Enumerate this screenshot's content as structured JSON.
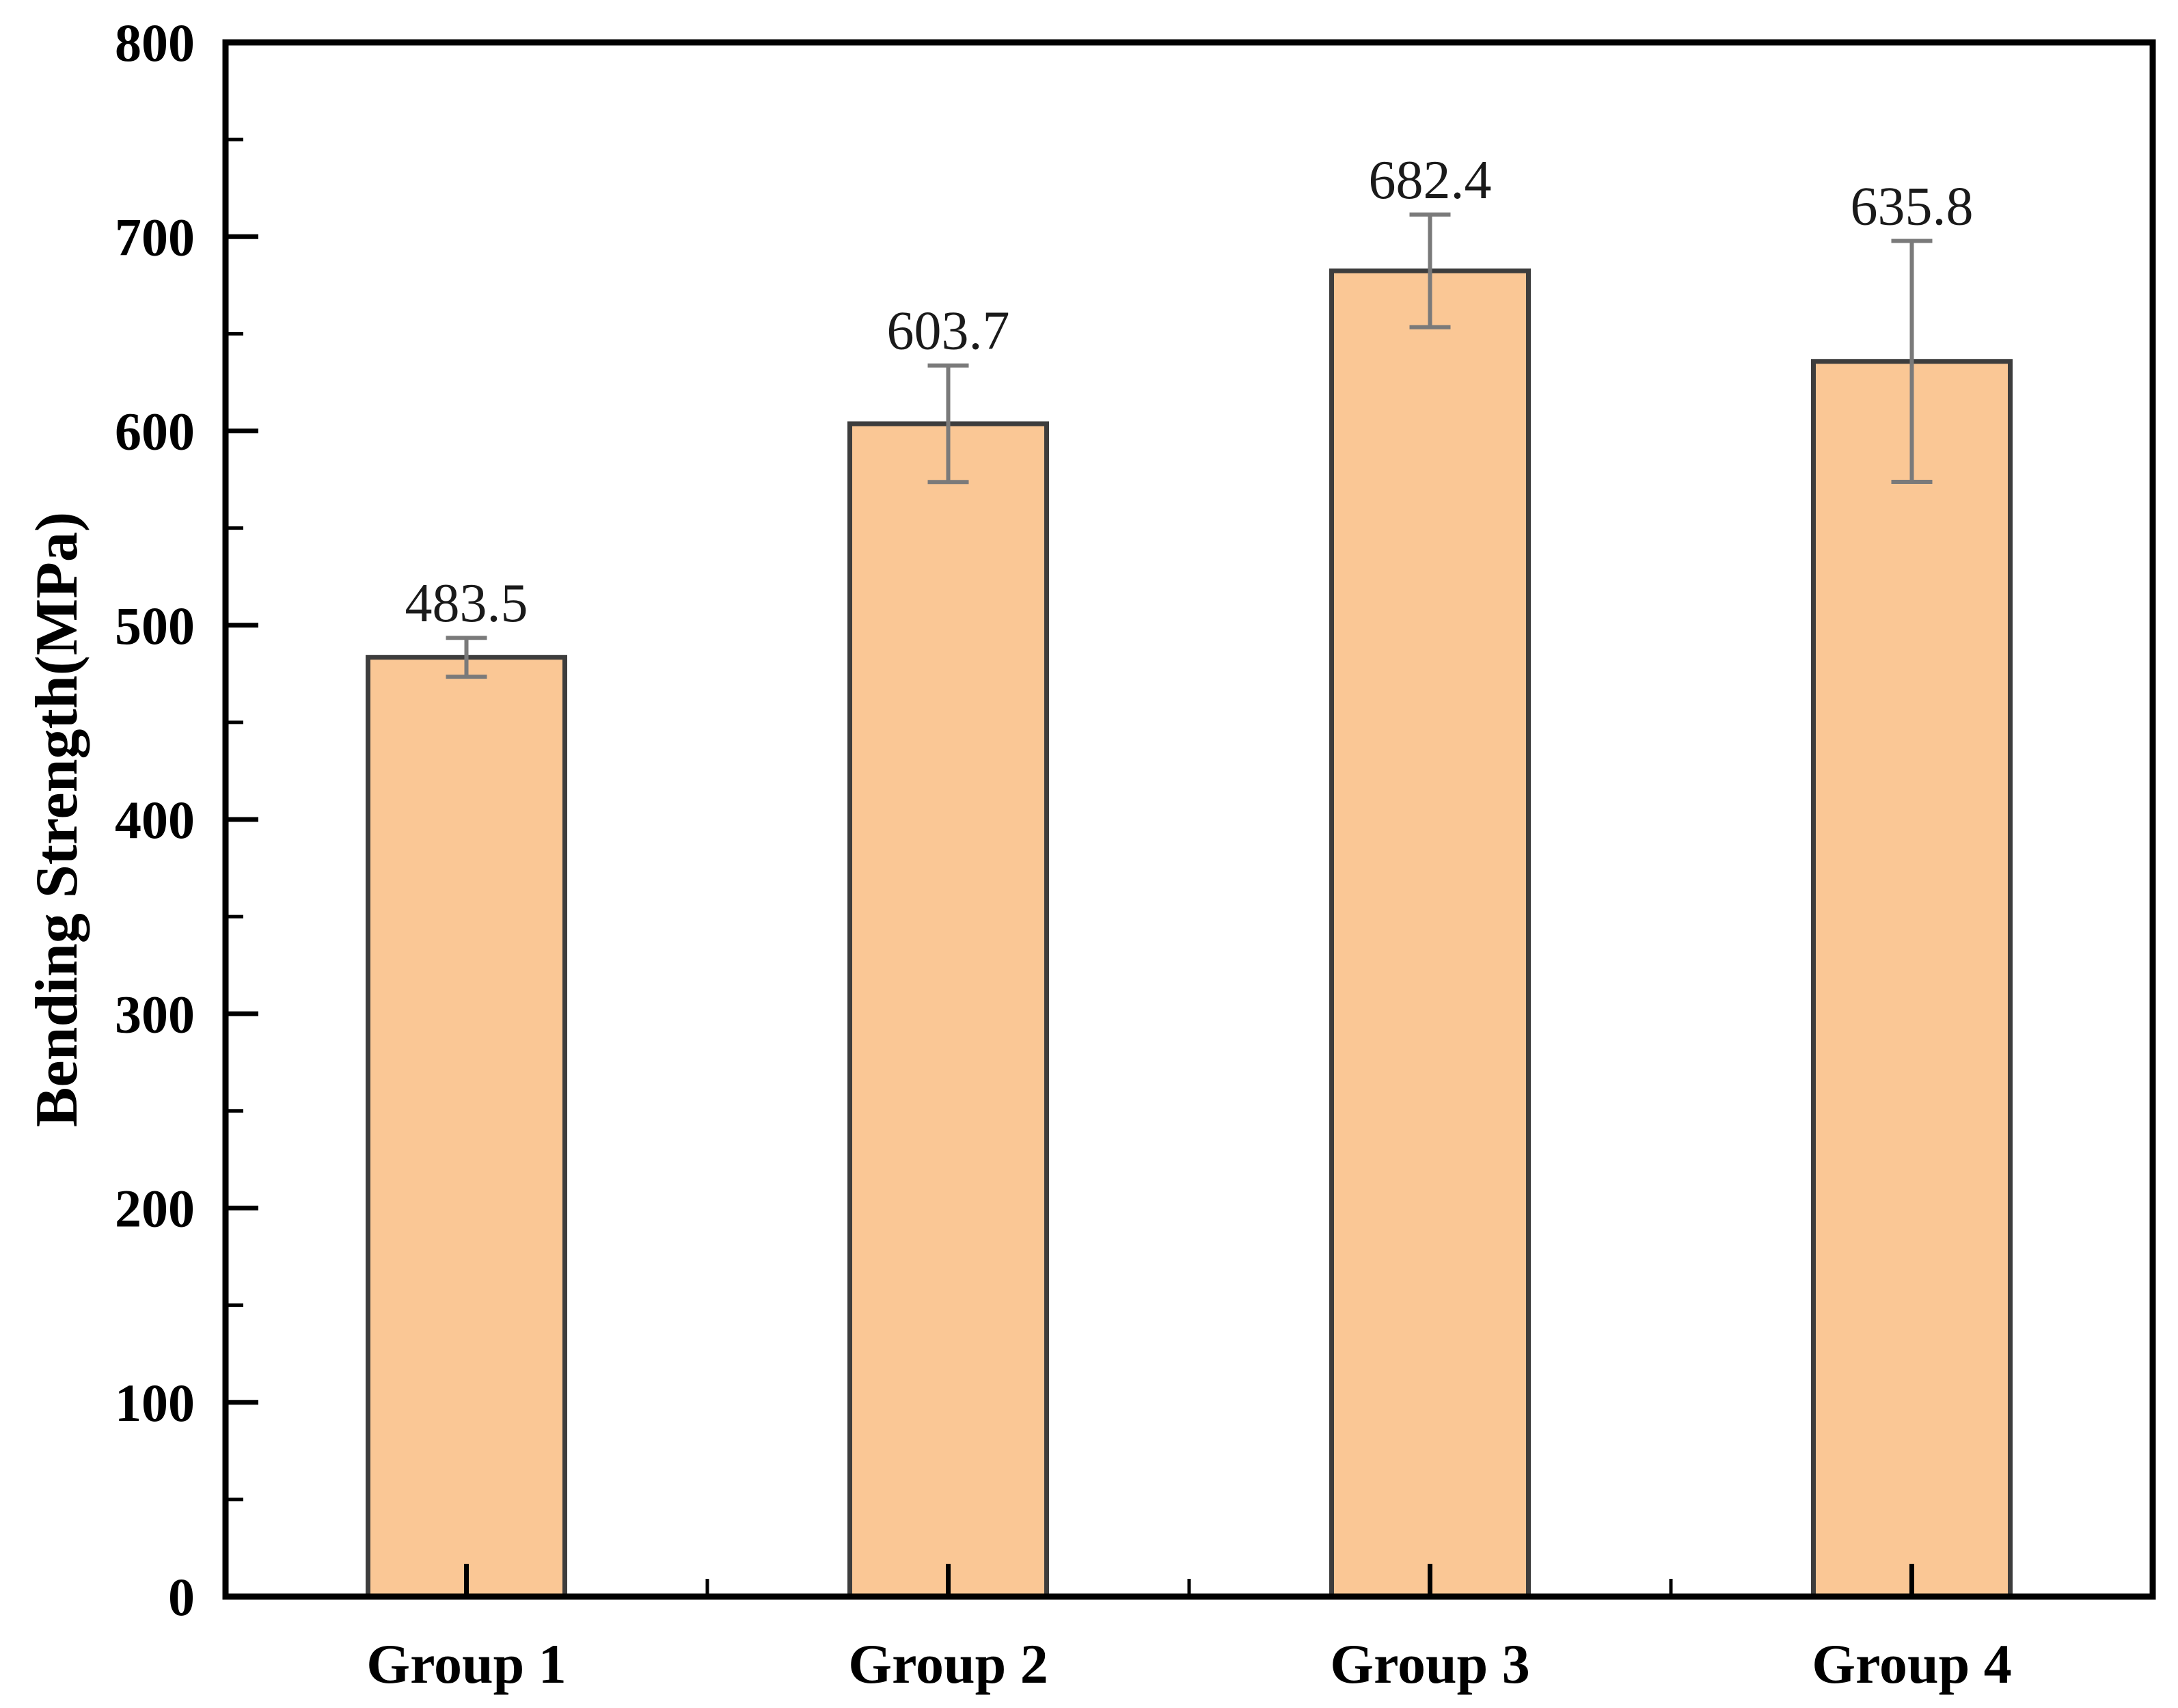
{
  "figure": {
    "background_color": "#ffffff",
    "frame_color": "#000000"
  },
  "chart_data": {
    "type": "bar",
    "title": "",
    "categories": [
      "Group 1",
      "Group 2",
      "Group 3",
      "Group 4"
    ],
    "values": [
      483.5,
      603.7,
      682.4,
      635.8
    ],
    "errors": [
      10,
      30,
      29,
      62
    ],
    "value_labels": [
      "483.5",
      "603.7",
      "682.4",
      "635.8"
    ],
    "xlabel": "",
    "ylabel": "Bending Strength(MPa)",
    "ylim": [
      0,
      800
    ],
    "y_major_step": 100,
    "y_minor_step": 50,
    "y_tick_labels": [
      "0",
      "100",
      "200",
      "300",
      "400",
      "500",
      "600",
      "700",
      "800"
    ],
    "grid": false,
    "legend_position": "none",
    "bar_fill_color": "#FAC795",
    "bar_border_color": "#3D3D3D",
    "error_bar_color": "#7A7A7A",
    "tick_color": "#000000",
    "text_color": "#000000"
  }
}
